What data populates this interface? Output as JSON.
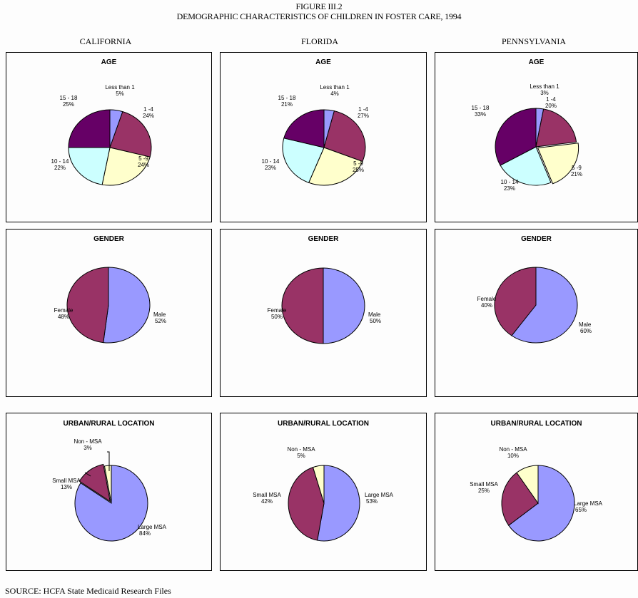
{
  "figure": {
    "number": "FIGURE III.2",
    "title": "DEMOGRAPHIC CHARACTERISTICS OF CHILDREN IN FOSTER CARE, 1994",
    "states": [
      "CALIFORNIA",
      "FLORIDA",
      "PENNSYLVANIA"
    ],
    "source": "SOURCE:  HCFA State Medicaid Research Files"
  },
  "colors": {
    "periwinkle": "#9999FF",
    "plum": "#993366",
    "light_yellow": "#FFFFCC",
    "light_cyan": "#CCFFFF",
    "dark_purple": "#660066"
  },
  "chart_data": [
    {
      "type": "pie",
      "state": "CALIFORNIA",
      "title": "AGE",
      "slices": [
        {
          "label": "Less than 1",
          "value": 5,
          "display": "5%",
          "color": "#9999FF"
        },
        {
          "label": "1 -4",
          "value": 24,
          "display": "24%",
          "color": "#993366"
        },
        {
          "label": "5 -9",
          "value": 24,
          "display": "24%",
          "color": "#FFFFCC"
        },
        {
          "label": "10 - 14",
          "value": 22,
          "display": "22%",
          "color": "#CCFFFF"
        },
        {
          "label": "15 - 18",
          "value": 25,
          "display": "25%",
          "color": "#660066"
        }
      ]
    },
    {
      "type": "pie",
      "state": "FLORIDA",
      "title": "AGE",
      "slices": [
        {
          "label": "Less than 1",
          "value": 4,
          "display": "4%",
          "color": "#9999FF"
        },
        {
          "label": "1 -4",
          "value": 27,
          "display": "27%",
          "color": "#993366"
        },
        {
          "label": "5 -9",
          "value": 25,
          "display": "25%",
          "color": "#FFFFCC"
        },
        {
          "label": "10 - 14",
          "value": 23,
          "display": "23%",
          "color": "#CCFFFF"
        },
        {
          "label": "15 - 18",
          "value": 21,
          "display": "21%",
          "color": "#660066"
        }
      ]
    },
    {
      "type": "pie",
      "state": "PENNSYLVANIA",
      "title": "AGE",
      "slices": [
        {
          "label": "Less than 1",
          "value": 3,
          "display": "3%",
          "color": "#9999FF"
        },
        {
          "label": "1 -4",
          "value": 20,
          "display": "20%",
          "color": "#993366"
        },
        {
          "label": "5 -9",
          "value": 21,
          "display": "21%",
          "color": "#FFFFCC"
        },
        {
          "label": "10 - 14",
          "value": 23,
          "display": "23%",
          "color": "#CCFFFF"
        },
        {
          "label": "15 - 18",
          "value": 33,
          "display": "33%",
          "color": "#660066"
        }
      ]
    },
    {
      "type": "pie",
      "state": "CALIFORNIA",
      "title": "GENDER",
      "slices": [
        {
          "label": "Male",
          "value": 52,
          "display": "52%",
          "color": "#9999FF"
        },
        {
          "label": "Female",
          "value": 48,
          "display": "48%",
          "color": "#993366"
        }
      ]
    },
    {
      "type": "pie",
      "state": "FLORIDA",
      "title": "GENDER",
      "slices": [
        {
          "label": "Male",
          "value": 50,
          "display": "50%",
          "color": "#9999FF"
        },
        {
          "label": "Female",
          "value": 50,
          "display": "50%",
          "color": "#993366"
        }
      ]
    },
    {
      "type": "pie",
      "state": "PENNSYLVANIA",
      "title": "GENDER",
      "slices": [
        {
          "label": "Male",
          "value": 60,
          "display": "60%",
          "color": "#9999FF"
        },
        {
          "label": "Female",
          "value": 40,
          "display": "40%",
          "color": "#993366"
        }
      ]
    },
    {
      "type": "pie",
      "state": "CALIFORNIA",
      "title": "URBAN/RURAL LOCATION",
      "slices": [
        {
          "label": "Large MSA",
          "value": 84,
          "display": "84%",
          "color": "#9999FF"
        },
        {
          "label": "Small MSA",
          "value": 13,
          "display": "13%",
          "color": "#993366"
        },
        {
          "label": "Non - MSA",
          "value": 3,
          "display": "3%",
          "color": "#FFFFCC"
        }
      ]
    },
    {
      "type": "pie",
      "state": "FLORIDA",
      "title": "URBAN/RURAL LOCATION",
      "slices": [
        {
          "label": "Large MSA",
          "value": 53,
          "display": "53%",
          "color": "#9999FF"
        },
        {
          "label": "Small MSA",
          "value": 42,
          "display": "42%",
          "color": "#993366"
        },
        {
          "label": "Non - MSA",
          "value": 5,
          "display": "5%",
          "color": "#FFFFCC"
        }
      ]
    },
    {
      "type": "pie",
      "state": "PENNSYLVANIA",
      "title": "URBAN/RURAL LOCATION",
      "slices": [
        {
          "label": "Large MSA",
          "value": 65,
          "display": "65%",
          "color": "#9999FF"
        },
        {
          "label": "Small MSA",
          "value": 25,
          "display": "25%",
          "color": "#993366"
        },
        {
          "label": "Non - MSA",
          "value": 10,
          "display": "10%",
          "color": "#FFFFCC"
        }
      ]
    }
  ]
}
